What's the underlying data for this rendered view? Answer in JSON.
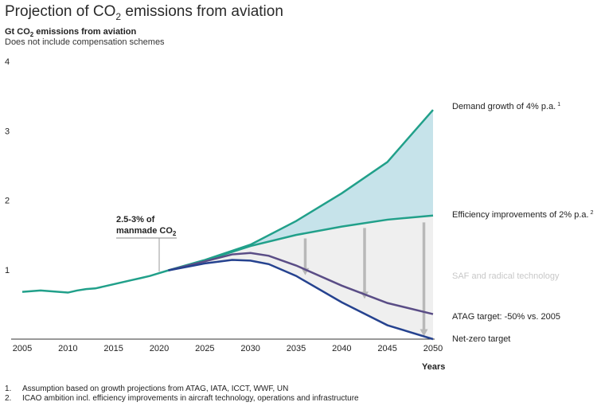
{
  "title_prefix": "Projection of CO",
  "title_sub": "2",
  "title_suffix": " emissions from aviation",
  "subtitle_prefix": "Gt CO",
  "subtitle_sub": "2",
  "subtitle_suffix": " emissions from aviation",
  "note": "Does not include compensation schemes",
  "footnotes": [
    {
      "num": "1.",
      "text": "Assumption based on growth projections from ATAG, IATA, ICCT, WWF, UN"
    },
    {
      "num": "2.",
      "text": "ICAO ambition incl. efficiency improvements in aircraft technology, operations and infrastructure"
    }
  ],
  "colors": {
    "teal": "#21a08a",
    "navy": "#25428f",
    "purple": "#5a4d86",
    "demand_fill": "#c6e3ea",
    "saf_fill": "#efefef",
    "arrow": "#b8b8b8",
    "saf_label": "#c8c8c8"
  },
  "chart_data": {
    "type": "line",
    "x_axis": {
      "label": "Years",
      "ticks": [
        2005,
        2010,
        2015,
        2020,
        2025,
        2030,
        2035,
        2040,
        2045,
        2050
      ],
      "range": [
        2005,
        2050
      ]
    },
    "y_axis": {
      "ticks": [
        1,
        2,
        3,
        4
      ],
      "range": [
        0,
        4
      ]
    },
    "historical": {
      "x": [
        2005,
        2006,
        2007,
        2008,
        2009,
        2010,
        2011,
        2012,
        2013,
        2014,
        2015,
        2016,
        2017,
        2018,
        2019,
        2020,
        2021
      ],
      "y": [
        0.68,
        0.69,
        0.7,
        0.69,
        0.68,
        0.67,
        0.7,
        0.72,
        0.73,
        0.76,
        0.79,
        0.82,
        0.85,
        0.88,
        0.91,
        0.95,
        0.99
      ]
    },
    "series": [
      {
        "name": "Demand growth of 4% p.a.",
        "sup": "1",
        "x": [
          2021,
          2025,
          2030,
          2035,
          2040,
          2045,
          2050
        ],
        "y": [
          0.99,
          1.14,
          1.36,
          1.7,
          2.1,
          2.55,
          3.3
        ]
      },
      {
        "name": "Efficiency improvements of 2% p.a.",
        "sup": "2",
        "x": [
          2021,
          2025,
          2030,
          2035,
          2040,
          2045,
          2050
        ],
        "y": [
          0.99,
          1.13,
          1.34,
          1.5,
          1.62,
          1.72,
          1.78
        ]
      },
      {
        "name": "ATAG target: -50% vs. 2005",
        "sup": "",
        "x": [
          2021,
          2025,
          2028,
          2030,
          2032,
          2035,
          2040,
          2045,
          2050
        ],
        "y": [
          0.99,
          1.12,
          1.22,
          1.24,
          1.2,
          1.06,
          0.77,
          0.52,
          0.36
        ]
      },
      {
        "name": "Net-zero target",
        "sup": "",
        "x": [
          2021,
          2025,
          2028,
          2030,
          2032,
          2035,
          2040,
          2045,
          2050
        ],
        "y": [
          0.99,
          1.09,
          1.14,
          1.13,
          1.08,
          0.91,
          0.53,
          0.2,
          0.0
        ]
      }
    ],
    "area_labels": [
      {
        "name": "SAF and radical technology"
      }
    ],
    "annotation": {
      "line1": "2.5-3% of",
      "line2_prefix": "manmade CO",
      "line2_sub": "2",
      "year": 2020
    },
    "arrows": [
      {
        "x": 2036,
        "from": 1.45,
        "to": 0.92
      },
      {
        "x": 2042.5,
        "from": 1.6,
        "to": 0.58
      },
      {
        "x": 2049,
        "from": 1.68,
        "to": 0.04
      }
    ]
  }
}
